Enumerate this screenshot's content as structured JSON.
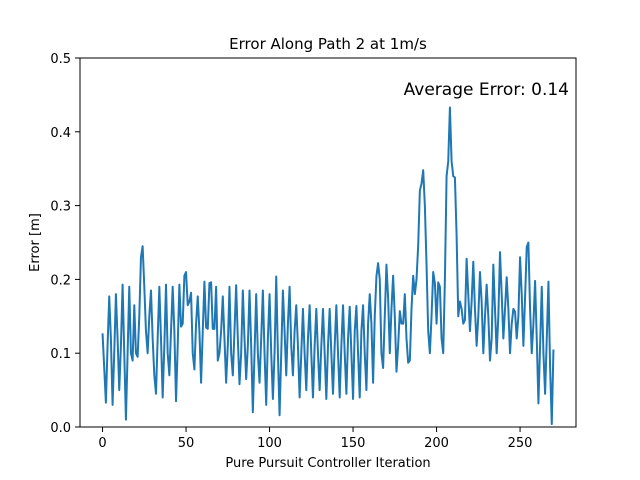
{
  "chart_data": {
    "type": "line",
    "title": "Error Along Path 2 at 1m/s",
    "xlabel": "Pure Pursuit Controller Iteration",
    "ylabel": "Error [m]",
    "xlim": [
      -13.5,
      283.5
    ],
    "ylim": [
      0,
      0.5
    ],
    "xticks": [
      0,
      50,
      100,
      150,
      200,
      250
    ],
    "yticks": [
      0.0,
      0.1,
      0.2,
      0.3,
      0.4,
      0.5
    ],
    "xtick_labels": [
      "0",
      "50",
      "100",
      "150",
      "200",
      "250"
    ],
    "ytick_labels": [
      "0.0",
      "0.1",
      "0.2",
      "0.3",
      "0.4",
      "0.5"
    ],
    "annotation": "Average Error: 0.14",
    "grid": false,
    "series": [
      {
        "color": "#1f77b4",
        "x": [
          0,
          1,
          2,
          3,
          4,
          5,
          6,
          7,
          8,
          9,
          10,
          11,
          12,
          13,
          14,
          15,
          16,
          17,
          18,
          19,
          20,
          21,
          22,
          23,
          24,
          25,
          26,
          27,
          28,
          29,
          30,
          31,
          32,
          33,
          34,
          35,
          36,
          37,
          38,
          39,
          40,
          41,
          42,
          43,
          44,
          45,
          46,
          47,
          48,
          49,
          50,
          51,
          52,
          53,
          54,
          55,
          56,
          57,
          58,
          59,
          60,
          61,
          62,
          63,
          64,
          65,
          66,
          67,
          68,
          69,
          70,
          71,
          72,
          73,
          74,
          75,
          76,
          77,
          78,
          79,
          80,
          81,
          82,
          83,
          84,
          85,
          86,
          87,
          88,
          89,
          90,
          91,
          92,
          93,
          94,
          95,
          96,
          97,
          98,
          99,
          100,
          101,
          102,
          103,
          104,
          105,
          106,
          107,
          108,
          109,
          110,
          111,
          112,
          113,
          114,
          115,
          116,
          117,
          118,
          119,
          120,
          121,
          122,
          123,
          124,
          125,
          126,
          127,
          128,
          129,
          130,
          131,
          132,
          133,
          134,
          135,
          136,
          137,
          138,
          139,
          140,
          141,
          142,
          143,
          144,
          145,
          146,
          147,
          148,
          149,
          150,
          151,
          152,
          153,
          154,
          155,
          156,
          157,
          158,
          159,
          160,
          161,
          162,
          163,
          164,
          165,
          166,
          167,
          168,
          169,
          170,
          171,
          172,
          173,
          174,
          175,
          176,
          177,
          178,
          179,
          180,
          181,
          182,
          183,
          184,
          185,
          186,
          187,
          188,
          189,
          190,
          191,
          192,
          193,
          194,
          195,
          196,
          197,
          198,
          199,
          200,
          201,
          202,
          203,
          204,
          205,
          206,
          207,
          208,
          209,
          210,
          211,
          212,
          213,
          214,
          215,
          216,
          217,
          218,
          219,
          220,
          221,
          222,
          223,
          224,
          225,
          226,
          227,
          228,
          229,
          230,
          231,
          232,
          233,
          234,
          235,
          236,
          237,
          238,
          239,
          240,
          241,
          242,
          243,
          244,
          245,
          246,
          247,
          248,
          249,
          250,
          251,
          252,
          253,
          254,
          255,
          256,
          257,
          258,
          259,
          260,
          261,
          262,
          263,
          264,
          265,
          266,
          267,
          268,
          269,
          270
        ],
        "y": [
          0.127,
          0.08,
          0.033,
          0.11,
          0.177,
          0.12,
          0.03,
          0.1,
          0.18,
          0.12,
          0.05,
          0.11,
          0.193,
          0.1,
          0.01,
          0.1,
          0.19,
          0.1,
          0.09,
          0.165,
          0.1,
          0.095,
          0.15,
          0.23,
          0.245,
          0.19,
          0.13,
          0.1,
          0.15,
          0.185,
          0.12,
          0.07,
          0.045,
          0.12,
          0.19,
          0.12,
          0.04,
          0.11,
          0.193,
          0.1,
          0.07,
          0.13,
          0.19,
          0.13,
          0.035,
          0.11,
          0.193,
          0.136,
          0.14,
          0.205,
          0.21,
          0.165,
          0.17,
          0.182,
          0.1,
          0.078,
          0.14,
          0.177,
          0.13,
          0.06,
          0.13,
          0.197,
          0.135,
          0.133,
          0.195,
          0.196,
          0.133,
          0.133,
          0.19,
          0.09,
          0.1,
          0.13,
          0.177,
          0.12,
          0.06,
          0.11,
          0.19,
          0.1,
          0.07,
          0.13,
          0.192,
          0.12,
          0.058,
          0.1,
          0.185,
          0.12,
          0.065,
          0.11,
          0.185,
          0.11,
          0.02,
          0.1,
          0.18,
          0.1,
          0.06,
          0.12,
          0.185,
          0.1,
          0.03,
          0.12,
          0.18,
          0.1,
          0.038,
          0.1,
          0.204,
          0.1,
          0.016,
          0.1,
          0.185,
          0.13,
          0.07,
          0.14,
          0.19,
          0.11,
          0.07,
          0.13,
          0.165,
          0.11,
          0.04,
          0.1,
          0.16,
          0.1,
          0.05,
          0.12,
          0.165,
          0.1,
          0.04,
          0.11,
          0.16,
          0.1,
          0.05,
          0.11,
          0.16,
          0.1,
          0.038,
          0.11,
          0.16,
          0.1,
          0.045,
          0.11,
          0.165,
          0.1,
          0.04,
          0.11,
          0.165,
          0.1,
          0.045,
          0.12,
          0.163,
          0.1,
          0.038,
          0.13,
          0.164,
          0.1,
          0.04,
          0.13,
          0.165,
          0.1,
          0.05,
          0.14,
          0.18,
          0.14,
          0.06,
          0.15,
          0.204,
          0.222,
          0.2,
          0.1,
          0.08,
          0.15,
          0.22,
          0.175,
          0.1,
          0.16,
          0.205,
          0.15,
          0.075,
          0.11,
          0.157,
          0.14,
          0.14,
          0.18,
          0.12,
          0.087,
          0.09,
          0.16,
          0.205,
          0.18,
          0.2,
          0.246,
          0.32,
          0.33,
          0.348,
          0.3,
          0.22,
          0.13,
          0.1,
          0.15,
          0.21,
          0.195,
          0.14,
          0.196,
          0.19,
          0.12,
          0.1,
          0.2,
          0.34,
          0.36,
          0.433,
          0.36,
          0.34,
          0.338,
          0.26,
          0.15,
          0.17,
          0.16,
          0.14,
          0.145,
          0.228,
          0.18,
          0.13,
          0.17,
          0.224,
          0.16,
          0.11,
          0.15,
          0.21,
          0.17,
          0.1,
          0.15,
          0.193,
          0.15,
          0.09,
          0.12,
          0.22,
          0.16,
          0.1,
          0.15,
          0.237,
          0.18,
          0.12,
          0.16,
          0.203,
          0.16,
          0.1,
          0.14,
          0.16,
          0.156,
          0.12,
          0.15,
          0.23,
          0.18,
          0.11,
          0.175,
          0.244,
          0.25,
          0.16,
          0.1,
          0.14,
          0.198,
          0.12,
          0.032,
          0.11,
          0.19,
          0.1,
          0.045,
          0.12,
          0.197,
          0.08,
          0.004,
          0.105
        ]
      }
    ]
  }
}
